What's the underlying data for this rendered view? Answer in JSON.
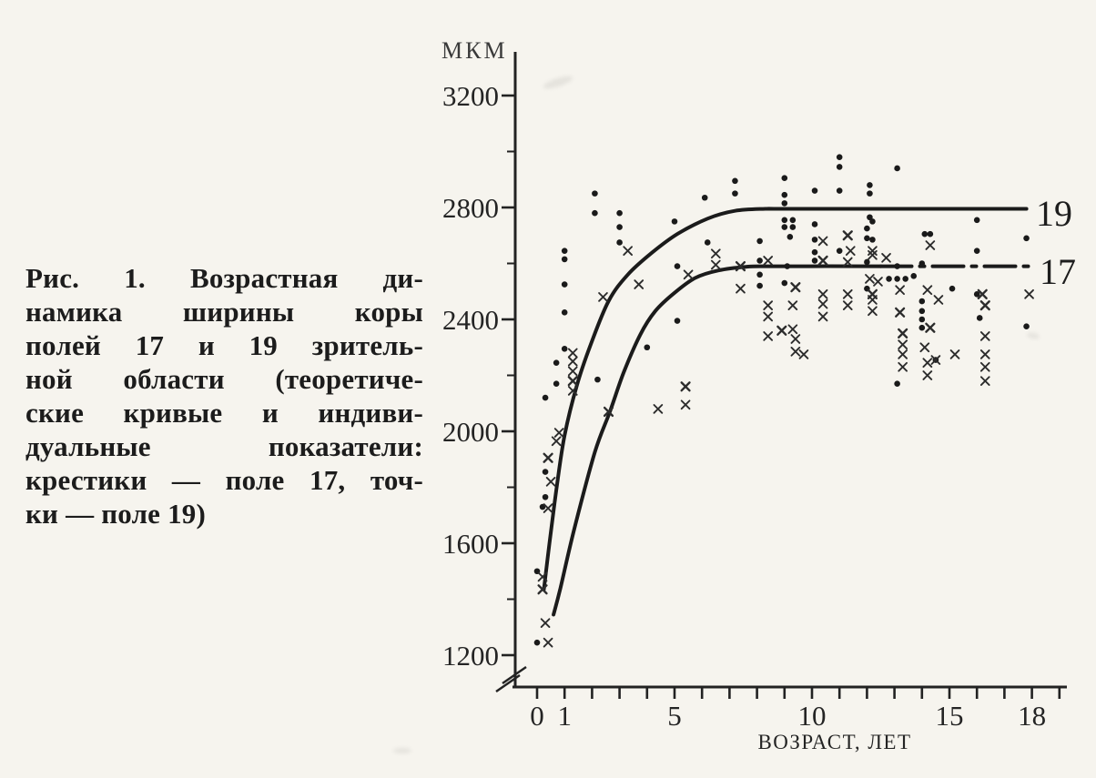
{
  "figure": {
    "caption_lines": [
      "Рис. 1. Возрастная ди-",
      "намика ширины коры",
      "полей 17 и 19 зритель-",
      "ной области (теоретиче-",
      "ские кривые и индиви-",
      "дуальные показатели:",
      "крестики — поле 17, точ-",
      "ки — поле 19)"
    ]
  },
  "colors": {
    "ink": "#222222",
    "curve": "#1b1b1b",
    "paper": "#f6f4ee"
  },
  "chart_data": {
    "type": "scatter",
    "title": "",
    "y_axis": {
      "label": "МКМ",
      "min": 1200,
      "max": 3200,
      "major_ticks": [
        3200,
        2800,
        2400,
        2000,
        1600,
        1200
      ],
      "minor_ticks": [
        3000,
        2600,
        2200,
        1800,
        1400
      ],
      "axis_break_below": 1200
    },
    "x_axis": {
      "label": "ВОЗРАСТ, ЛЕТ",
      "min": 0,
      "max": 19,
      "tick_step": 1,
      "labeled_ticks": [
        0,
        1,
        5,
        10,
        15,
        18
      ]
    },
    "series": [
      {
        "name": "поле 19",
        "marker": "dot",
        "points": [
          [
            0.0,
            1245
          ],
          [
            0.0,
            1500
          ],
          [
            0.2,
            1730
          ],
          [
            0.3,
            1765
          ],
          [
            0.3,
            1855
          ],
          [
            0.3,
            2120
          ],
          [
            0.7,
            2170
          ],
          [
            0.7,
            2245
          ],
          [
            1.0,
            2295
          ],
          [
            1.0,
            2425
          ],
          [
            1.0,
            2525
          ],
          [
            1.0,
            2615
          ],
          [
            1.0,
            2645
          ],
          [
            2.1,
            2780
          ],
          [
            2.1,
            2850
          ],
          [
            2.2,
            2185
          ],
          [
            3.0,
            2675
          ],
          [
            3.0,
            2730
          ],
          [
            3.0,
            2780
          ],
          [
            4.0,
            2300
          ],
          [
            5.0,
            2750
          ],
          [
            5.1,
            2395
          ],
          [
            5.1,
            2590
          ],
          [
            6.1,
            2835
          ],
          [
            6.2,
            2675
          ],
          [
            7.2,
            2850
          ],
          [
            7.2,
            2895
          ],
          [
            8.1,
            2520
          ],
          [
            8.1,
            2560
          ],
          [
            8.1,
            2610
          ],
          [
            8.1,
            2680
          ],
          [
            9.0,
            2530
          ],
          [
            9.0,
            2730
          ],
          [
            9.0,
            2755
          ],
          [
            9.0,
            2815
          ],
          [
            9.0,
            2845
          ],
          [
            9.0,
            2905
          ],
          [
            9.1,
            2590
          ],
          [
            9.2,
            2695
          ],
          [
            9.3,
            2730
          ],
          [
            9.3,
            2755
          ],
          [
            10.1,
            2610
          ],
          [
            10.1,
            2640
          ],
          [
            10.1,
            2685
          ],
          [
            10.1,
            2740
          ],
          [
            10.1,
            2860
          ],
          [
            11.0,
            2645
          ],
          [
            11.0,
            2860
          ],
          [
            11.0,
            2945
          ],
          [
            11.0,
            2980
          ],
          [
            12.0,
            2510
          ],
          [
            12.0,
            2605
          ],
          [
            12.0,
            2690
          ],
          [
            12.0,
            2725
          ],
          [
            12.1,
            2765
          ],
          [
            12.1,
            2850
          ],
          [
            12.1,
            2880
          ],
          [
            12.2,
            2685
          ],
          [
            12.2,
            2750
          ],
          [
            12.8,
            2545
          ],
          [
            13.1,
            2170
          ],
          [
            13.1,
            2545
          ],
          [
            13.1,
            2590
          ],
          [
            13.1,
            2940
          ],
          [
            13.4,
            2545
          ],
          [
            13.7,
            2555
          ],
          [
            14.0,
            2370
          ],
          [
            14.0,
            2400
          ],
          [
            14.0,
            2430
          ],
          [
            14.0,
            2465
          ],
          [
            14.0,
            2600
          ],
          [
            14.1,
            2705
          ],
          [
            14.3,
            2705
          ],
          [
            14.5,
            2255
          ],
          [
            15.1,
            2510
          ],
          [
            16.0,
            2490
          ],
          [
            16.0,
            2645
          ],
          [
            16.0,
            2755
          ],
          [
            16.1,
            2405
          ],
          [
            17.8,
            2375
          ],
          [
            17.8,
            2690
          ]
        ]
      },
      {
        "name": "поле 17",
        "marker": "cross",
        "points": [
          [
            0.2,
            1435
          ],
          [
            0.2,
            1480
          ],
          [
            0.3,
            1315
          ],
          [
            0.4,
            1245
          ],
          [
            0.4,
            1725
          ],
          [
            0.4,
            1905
          ],
          [
            0.5,
            1820
          ],
          [
            0.7,
            1965
          ],
          [
            0.8,
            1995
          ],
          [
            1.3,
            2145
          ],
          [
            1.3,
            2180
          ],
          [
            1.3,
            2215
          ],
          [
            1.3,
            2250
          ],
          [
            1.3,
            2280
          ],
          [
            2.4,
            2480
          ],
          [
            2.6,
            2070
          ],
          [
            3.3,
            2645
          ],
          [
            3.7,
            2525
          ],
          [
            4.4,
            2080
          ],
          [
            5.4,
            2095
          ],
          [
            5.4,
            2160
          ],
          [
            5.5,
            2560
          ],
          [
            6.5,
            2595
          ],
          [
            6.5,
            2635
          ],
          [
            7.4,
            2510
          ],
          [
            7.4,
            2590
          ],
          [
            8.4,
            2340
          ],
          [
            8.4,
            2410
          ],
          [
            8.4,
            2450
          ],
          [
            8.4,
            2610
          ],
          [
            8.9,
            2360
          ],
          [
            9.3,
            2365
          ],
          [
            9.3,
            2450
          ],
          [
            9.4,
            2285
          ],
          [
            9.4,
            2330
          ],
          [
            9.4,
            2515
          ],
          [
            9.7,
            2275
          ],
          [
            10.4,
            2410
          ],
          [
            10.4,
            2455
          ],
          [
            10.4,
            2490
          ],
          [
            10.4,
            2610
          ],
          [
            10.4,
            2680
          ],
          [
            11.3,
            2450
          ],
          [
            11.3,
            2490
          ],
          [
            11.3,
            2605
          ],
          [
            11.3,
            2700
          ],
          [
            11.4,
            2645
          ],
          [
            12.1,
            2545
          ],
          [
            12.2,
            2430
          ],
          [
            12.2,
            2470
          ],
          [
            12.2,
            2490
          ],
          [
            12.2,
            2630
          ],
          [
            12.2,
            2645
          ],
          [
            12.4,
            2535
          ],
          [
            12.7,
            2620
          ],
          [
            13.2,
            2425
          ],
          [
            13.2,
            2505
          ],
          [
            13.3,
            2230
          ],
          [
            13.3,
            2275
          ],
          [
            13.3,
            2310
          ],
          [
            13.3,
            2350
          ],
          [
            14.1,
            2300
          ],
          [
            14.2,
            2200
          ],
          [
            14.2,
            2245
          ],
          [
            14.2,
            2505
          ],
          [
            14.3,
            2370
          ],
          [
            14.3,
            2665
          ],
          [
            14.5,
            2255
          ],
          [
            14.6,
            2470
          ],
          [
            15.2,
            2275
          ],
          [
            16.2,
            2490
          ],
          [
            16.3,
            2180
          ],
          [
            16.3,
            2230
          ],
          [
            16.3,
            2275
          ],
          [
            16.3,
            2340
          ],
          [
            16.3,
            2450
          ],
          [
            17.9,
            2490
          ]
        ]
      }
    ],
    "curves": [
      {
        "label": "19",
        "plateau": 2795,
        "end_age": 17.8,
        "dashed_from_age": null,
        "points": [
          [
            0.25,
            1435
          ],
          [
            0.45,
            1600
          ],
          [
            0.7,
            1790
          ],
          [
            1.0,
            1985
          ],
          [
            1.45,
            2165
          ],
          [
            1.95,
            2310
          ],
          [
            2.6,
            2465
          ],
          [
            3.3,
            2560
          ],
          [
            4.2,
            2640
          ],
          [
            5.1,
            2705
          ],
          [
            6.2,
            2760
          ],
          [
            7.2,
            2788
          ],
          [
            8.3,
            2795
          ],
          [
            9.5,
            2795
          ],
          [
            17.8,
            2795
          ]
        ]
      },
      {
        "label": "17",
        "plateau": 2590,
        "end_age": 18.0,
        "dashed_from_age": 12.5,
        "points": [
          [
            0.6,
            1345
          ],
          [
            0.85,
            1440
          ],
          [
            1.35,
            1650
          ],
          [
            2.1,
            1925
          ],
          [
            2.65,
            2070
          ],
          [
            3.15,
            2210
          ],
          [
            3.75,
            2345
          ],
          [
            4.3,
            2430
          ],
          [
            5.0,
            2495
          ],
          [
            5.75,
            2548
          ],
          [
            6.6,
            2575
          ],
          [
            7.6,
            2588
          ],
          [
            8.6,
            2590
          ],
          [
            12.5,
            2590
          ]
        ]
      }
    ],
    "legend_position": "none",
    "grid": false
  }
}
